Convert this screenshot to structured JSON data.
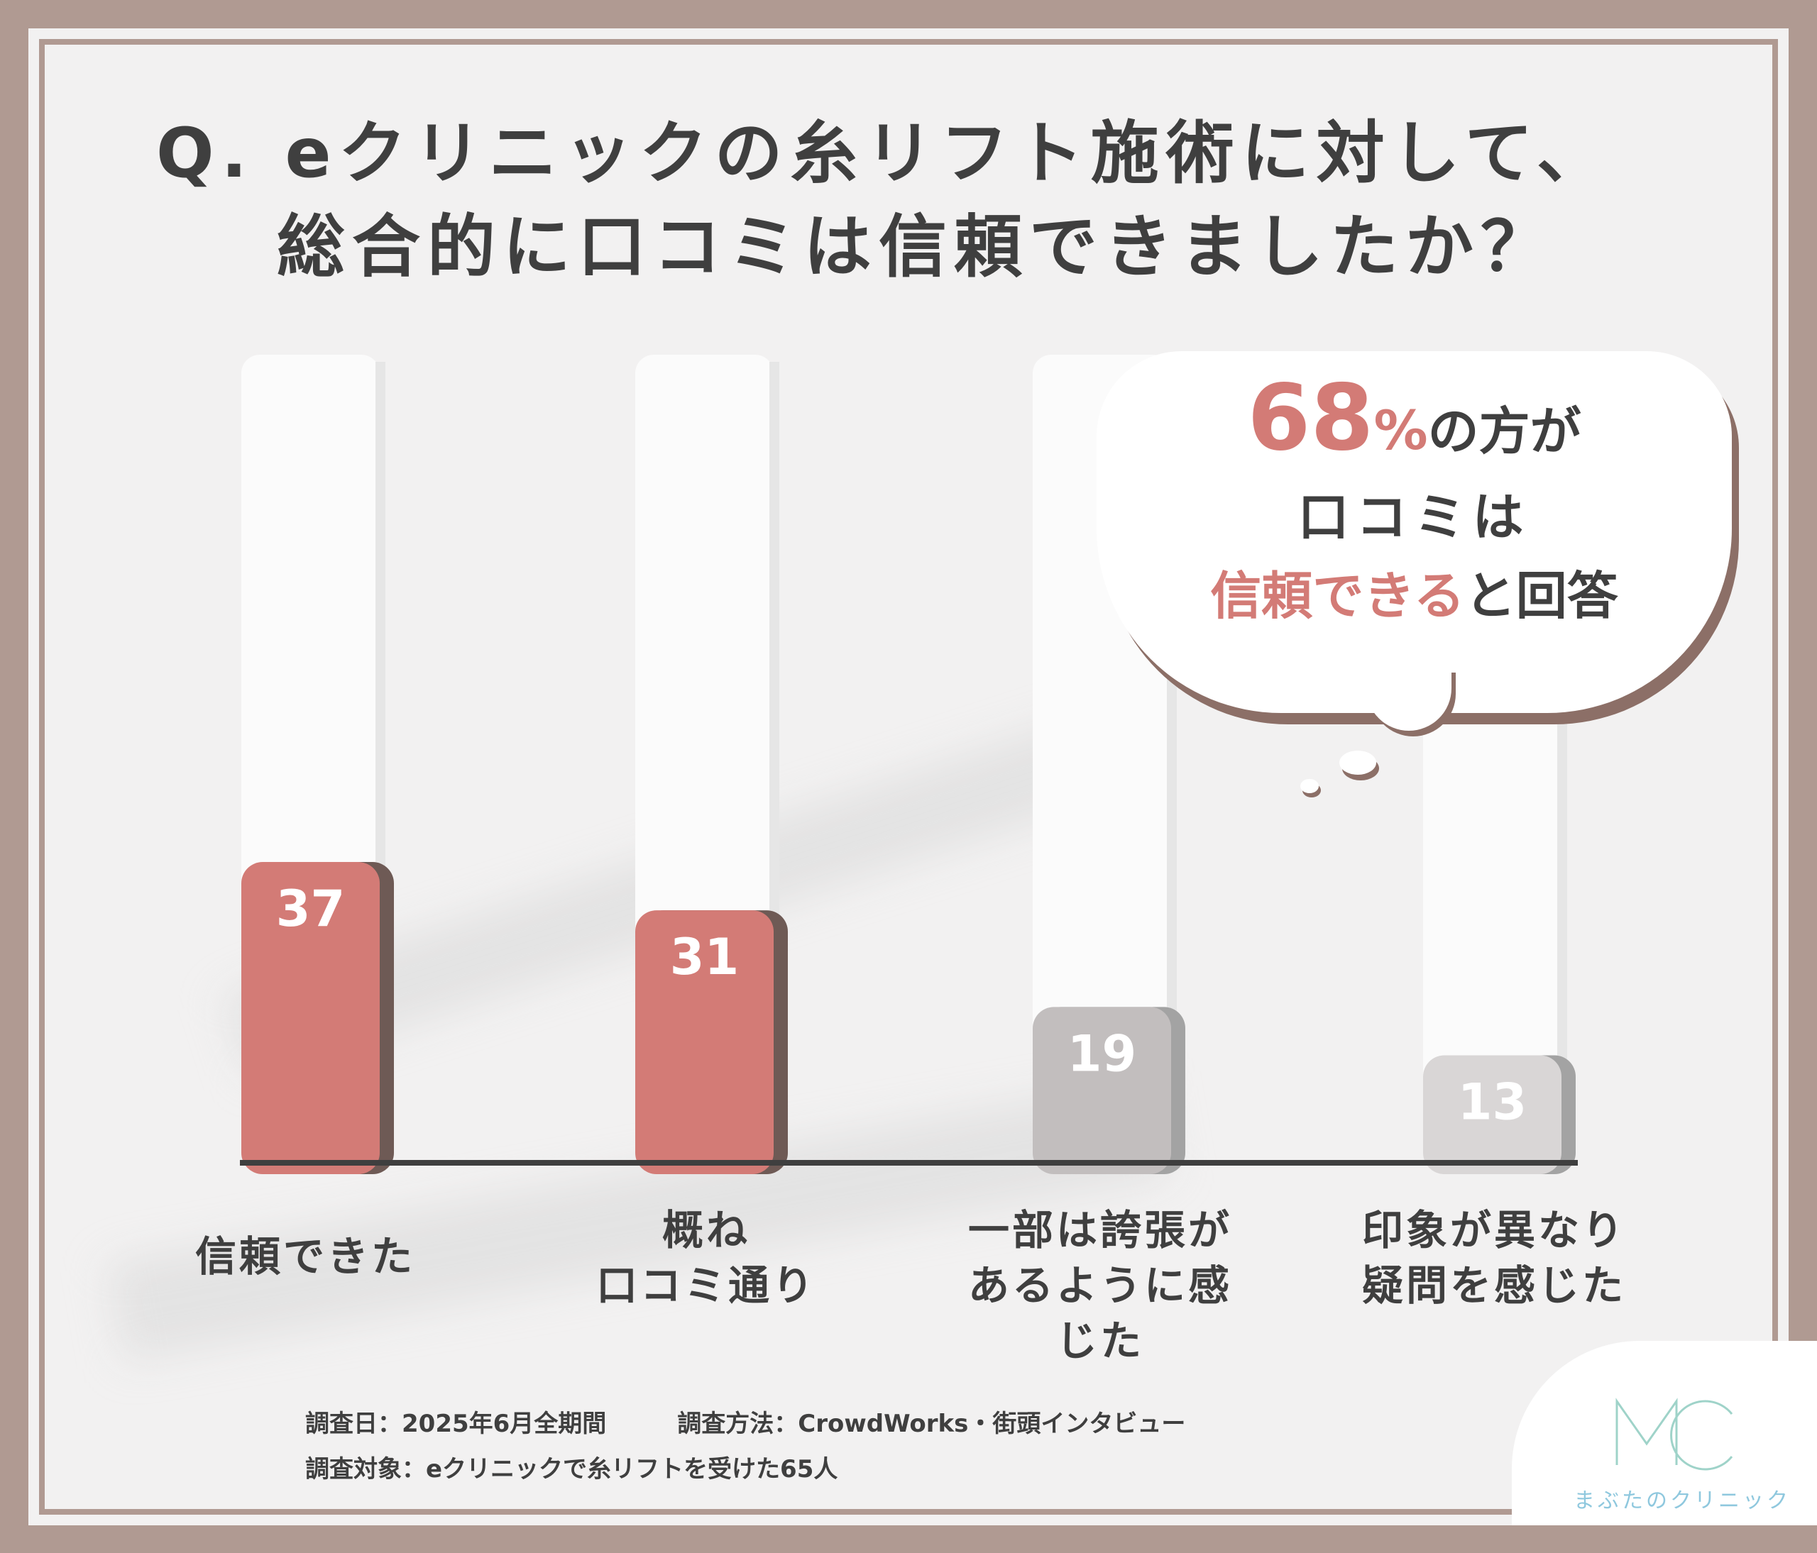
{
  "title": {
    "line1": "Q. eクリニックの糸リフト施術に対して、",
    "line2": "総合的に口コミは信頼できましたか？"
  },
  "callout": {
    "percent_number": "68",
    "percent_symbol": "%",
    "line1_suffix": "の方が",
    "line2": "口コミは",
    "line3_accent": "信頼できる",
    "line3_suffix": "と回答"
  },
  "chart_data": {
    "type": "bar",
    "categories": [
      [
        "信頼できた"
      ],
      [
        "概ね",
        "口コミ通り"
      ],
      [
        "一部は誇張が",
        "あるように感じた"
      ],
      [
        "印象が異なり",
        "疑問を感じた"
      ]
    ],
    "values": [
      37,
      31,
      19,
      13
    ],
    "colors": [
      "#d37b76",
      "#d37b76",
      "#c2bebe",
      "#d9d6d6"
    ],
    "ylim": [
      0,
      100
    ],
    "grid": false,
    "legend": "none"
  },
  "footer": {
    "survey_date": "調査日：2025年6月全期間",
    "survey_method": "調査方法：CrowdWorks・街頭インタビュー",
    "survey_target": "調査対象：eクリニックで糸リフトを受けた65人"
  },
  "logo": {
    "text": "まぶたのクリニック",
    "color": "#8fc8de"
  }
}
